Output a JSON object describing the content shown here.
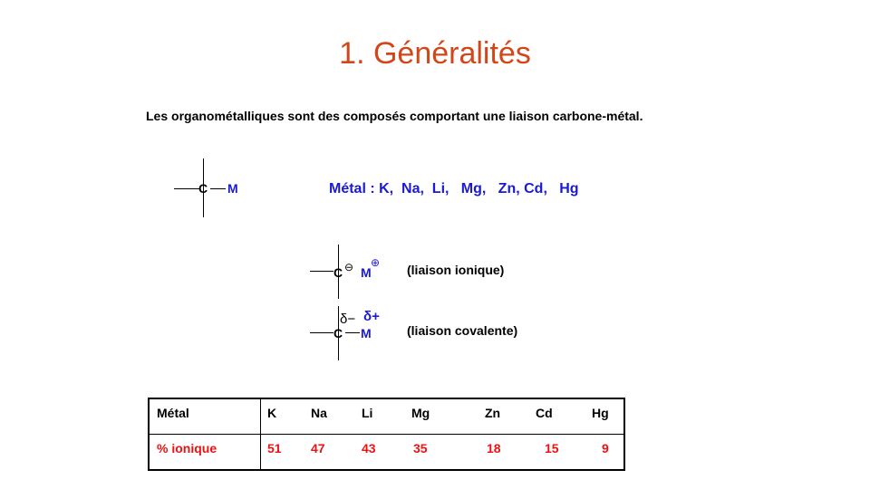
{
  "title": "1. Généralités",
  "intro": "Les organométalliques sont des composés comportant une liaison carbone-métal.",
  "structure1": {
    "carbon": "C",
    "metal": "M"
  },
  "metals_line": "Métal : K,  Na,  Li,   Mg,   Zn, Cd,   Hg",
  "ionic": {
    "carbon": "C",
    "minus": "⊖",
    "metal": "M",
    "plus": "⊕",
    "label": "(liaison ionique)"
  },
  "covalent": {
    "carbon": "C",
    "delta_minus": "δ−",
    "metal": "M",
    "delta_plus": "δ+",
    "label": "(liaison covalente)"
  },
  "table": {
    "row1_header": "Métal",
    "row2_header": "% ionique",
    "metals": [
      "K",
      "Na",
      "Li",
      "Mg",
      "Zn",
      "Cd",
      "Hg"
    ],
    "values": [
      "51",
      "47",
      "43",
      "35",
      "18",
      "15",
      "9"
    ]
  }
}
